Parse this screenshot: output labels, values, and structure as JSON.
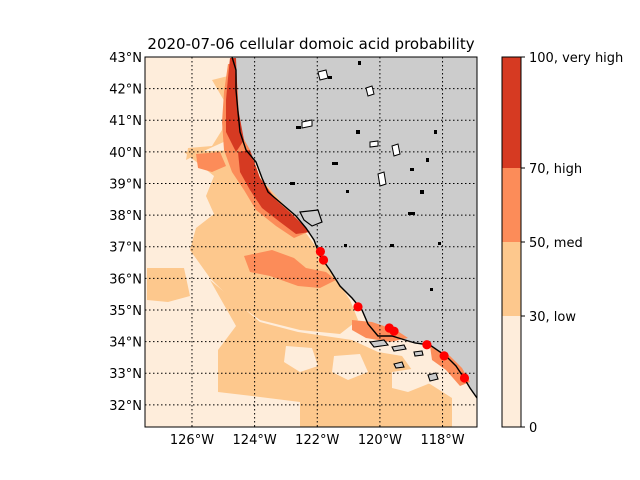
{
  "title": "2020-07-06 cellular domoic acid probability",
  "lat_ticks": [
    {
      "deg": 43,
      "label": "43°N"
    },
    {
      "deg": 42,
      "label": "42°N"
    },
    {
      "deg": 41,
      "label": "41°N"
    },
    {
      "deg": 40,
      "label": "40°N"
    },
    {
      "deg": 39,
      "label": "39°N"
    },
    {
      "deg": 38,
      "label": "38°N"
    },
    {
      "deg": 37,
      "label": "37°N"
    },
    {
      "deg": 36,
      "label": "36°N"
    },
    {
      "deg": 35,
      "label": "35°N"
    },
    {
      "deg": 34,
      "label": "34°N"
    },
    {
      "deg": 33,
      "label": "33°N"
    },
    {
      "deg": 32,
      "label": "32°N"
    }
  ],
  "lon_ticks": [
    {
      "deg": -126,
      "label": "126°W"
    },
    {
      "deg": -124,
      "label": "124°W"
    },
    {
      "deg": -122,
      "label": "122°W"
    },
    {
      "deg": -120,
      "label": "120°W"
    },
    {
      "deg": -118,
      "label": "118°W"
    }
  ],
  "colorbar": {
    "ticks": [
      {
        "value": 0,
        "label": "0"
      },
      {
        "value": 30,
        "label": "30, low"
      },
      {
        "value": 50,
        "label": "50, med"
      },
      {
        "value": 70,
        "label": "70, high"
      },
      {
        "value": 100,
        "label": "100, very high"
      }
    ],
    "bands": [
      {
        "from": 0,
        "to": 30,
        "color": "#feeddb"
      },
      {
        "from": 30,
        "to": 50,
        "color": "#fdc88d"
      },
      {
        "from": 50,
        "to": 70,
        "color": "#fc8c59"
      },
      {
        "from": 70,
        "to": 100,
        "color": "#d63a22"
      }
    ]
  },
  "colors": {
    "land": "#cccccc",
    "coast": "#000000",
    "grid": "#000000",
    "marker": "#ff0000"
  },
  "chart_data": {
    "type": "map",
    "lon_range": [
      -127.5,
      -116.9
    ],
    "lat_range": [
      31.3,
      43.0
    ],
    "observation_sites": [
      {
        "lon": -121.9,
        "lat": 36.85
      },
      {
        "lon": -121.8,
        "lat": 36.58
      },
      {
        "lon": -120.7,
        "lat": 35.1
      },
      {
        "lon": -119.7,
        "lat": 34.43
      },
      {
        "lon": -119.55,
        "lat": 34.33
      },
      {
        "lon": -118.5,
        "lat": 33.9
      },
      {
        "lon": -117.95,
        "lat": 33.55
      },
      {
        "lon": -117.3,
        "lat": 32.85
      }
    ]
  }
}
